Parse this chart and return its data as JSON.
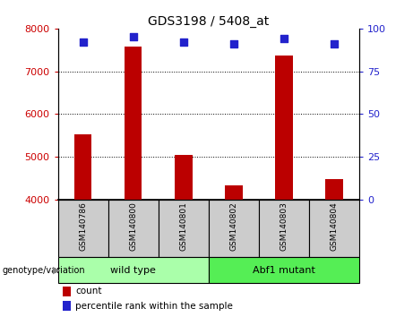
{
  "title": "GDS3198 / 5408_at",
  "samples": [
    "GSM140786",
    "GSM140800",
    "GSM140801",
    "GSM140802",
    "GSM140803",
    "GSM140804"
  ],
  "counts": [
    5520,
    7570,
    5050,
    4340,
    7370,
    4490
  ],
  "percentile_ranks": [
    92,
    95,
    92,
    91,
    94,
    91
  ],
  "ylim_left": [
    4000,
    8000
  ],
  "ylim_right": [
    0,
    100
  ],
  "yticks_left": [
    4000,
    5000,
    6000,
    7000,
    8000
  ],
  "yticks_right": [
    0,
    25,
    50,
    75,
    100
  ],
  "groups": [
    {
      "label": "wild type",
      "indices": [
        0,
        1,
        2
      ],
      "color": "#aaffaa"
    },
    {
      "label": "Abf1 mutant",
      "indices": [
        3,
        4,
        5
      ],
      "color": "#55ee55"
    }
  ],
  "bar_color": "#bb0000",
  "marker_color": "#2222cc",
  "sample_bg_color": "#cccccc",
  "left_tick_color": "#cc0000",
  "right_tick_color": "#2222cc",
  "bar_width": 0.35,
  "marker_size": 40,
  "genotype_label": "genotype/variation"
}
